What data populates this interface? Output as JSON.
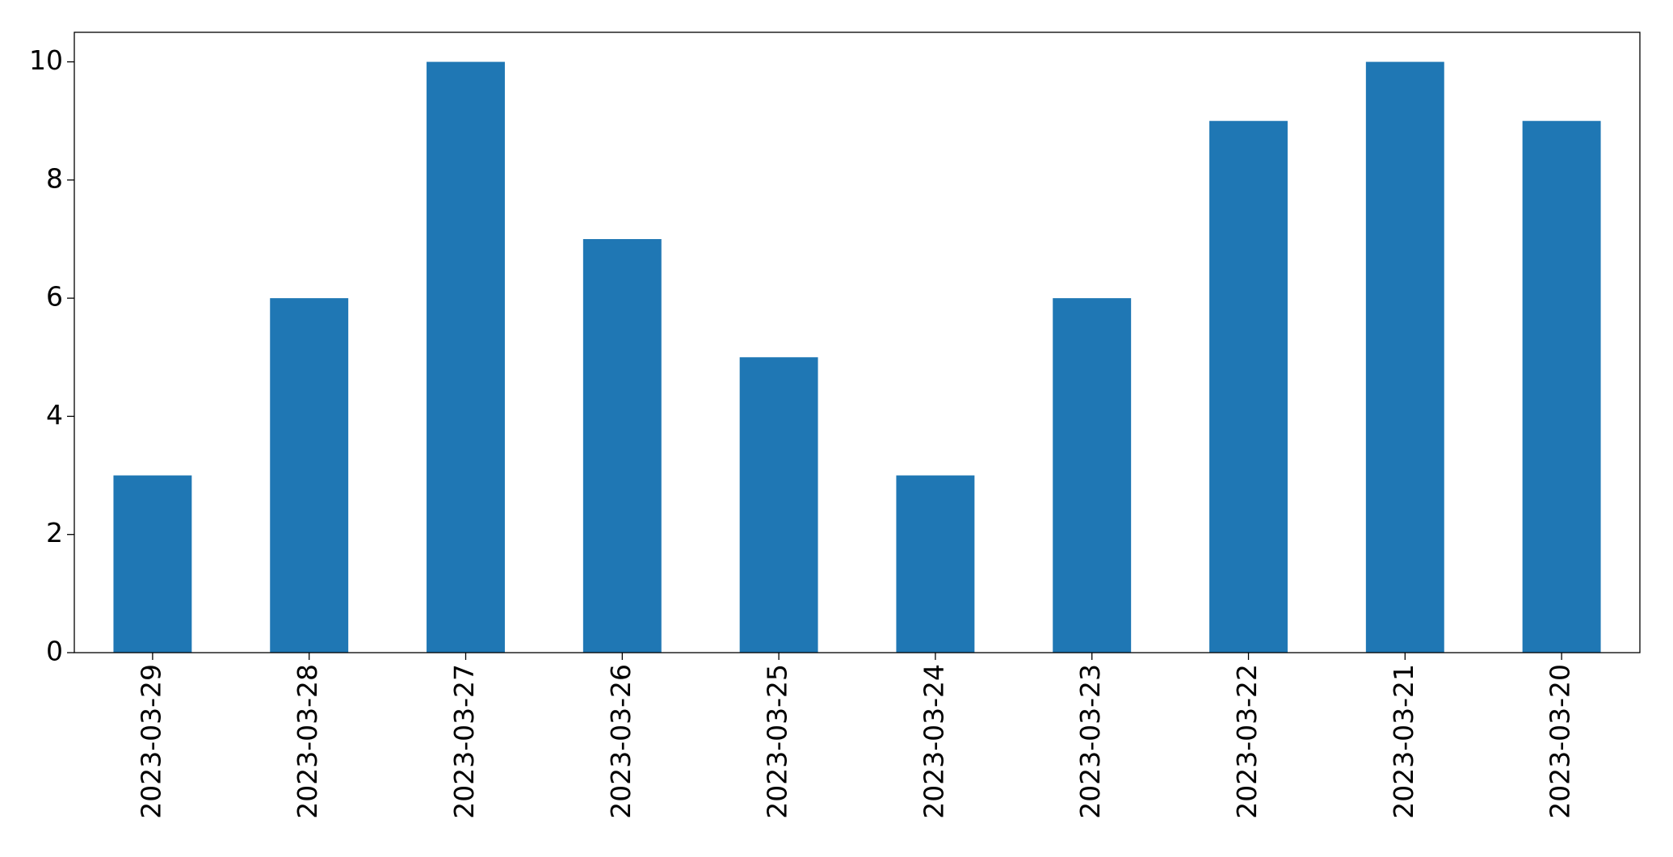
{
  "chart_data": {
    "type": "bar",
    "categories": [
      "2023-03-29",
      "2023-03-28",
      "2023-03-27",
      "2023-03-26",
      "2023-03-25",
      "2023-03-24",
      "2023-03-23",
      "2023-03-22",
      "2023-03-21",
      "2023-03-20"
    ],
    "values": [
      3,
      6,
      10,
      7,
      5,
      3,
      6,
      9,
      10,
      9
    ],
    "color": "#1f77b4",
    "ylim": [
      0,
      10.5
    ],
    "yticks": [
      0,
      2,
      4,
      6,
      8,
      10
    ],
    "grid": false
  }
}
